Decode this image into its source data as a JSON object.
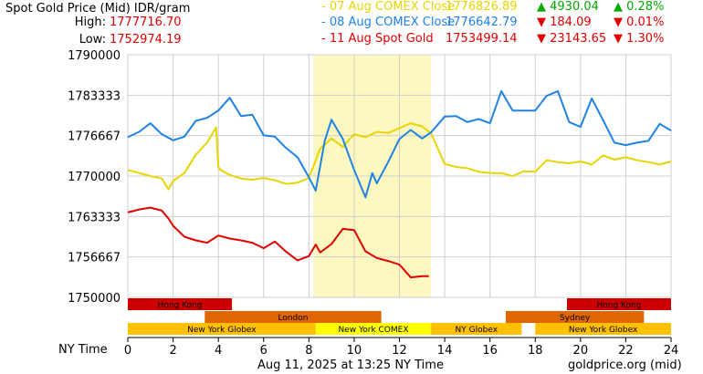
{
  "header": {
    "title": "Spot Gold Price (Mid) IDR/gram",
    "high_label": "High:",
    "high_value": "1777716.70",
    "low_label": "Low:",
    "low_value": "1752974.19"
  },
  "legend": [
    {
      "label": "- 07 Aug COMEX Close",
      "price": "1776826.89",
      "change": "▲ 4930.04",
      "pct": "▲ 0.28%",
      "color": "#e8d400",
      "change_color": "#00aa00"
    },
    {
      "label": "- 08 Aug COMEX Close",
      "price": "1776642.79",
      "change": "▼ 184.09",
      "pct": "▼ 0.01%",
      "color": "#1e82e6",
      "change_color": "#e00000"
    },
    {
      "label": "- 11 Aug Spot Gold",
      "price": "1753499.14",
      "change": "▼ 23143.65",
      "pct": "▼ 1.30%",
      "color": "#e00000",
      "change_color": "#e00000"
    }
  ],
  "footer": {
    "x_axis_name": "NY Time",
    "timestamp": "Aug 11, 2025 at 13:25 NY Time",
    "source": "goldprice.org (mid)"
  },
  "colors": {
    "highlight": "#fcf8c0",
    "grid": "#cfcfcf",
    "hongkong": "#cc0000",
    "london": "#e06600",
    "sydney": "#e06600",
    "globex": "#ffc000",
    "comex": "#ffff00"
  },
  "chart_data": {
    "type": "line",
    "xlim": [
      0,
      24
    ],
    "ylim": [
      1750000,
      1790000
    ],
    "yticks": [
      "1750000",
      "1756667",
      "1763333",
      "1770000",
      "1776667",
      "1783333",
      "1790000"
    ],
    "ytick_values": [
      1750000,
      1756667,
      1763333,
      1770000,
      1776667,
      1783333,
      1790000
    ],
    "xticks": [
      "0",
      "2",
      "4",
      "6",
      "8",
      "10",
      "12",
      "14",
      "16",
      "18",
      "20",
      "22",
      "24"
    ],
    "xtick_values": [
      0,
      2,
      4,
      6,
      8,
      10,
      12,
      14,
      16,
      18,
      20,
      22,
      24
    ],
    "comex_session_hours": [
      8.2,
      13.4
    ],
    "sessions": [
      {
        "name": "Hong Kong",
        "row": 0,
        "start": 0,
        "end": 4.6,
        "color": "hongkong"
      },
      {
        "name": "Hong Kong",
        "row": 0,
        "start": 19.4,
        "end": 24,
        "color": "hongkong"
      },
      {
        "name": "London",
        "row": 1,
        "start": 3.4,
        "end": 11.2,
        "color": "london"
      },
      {
        "name": "Sydney",
        "row": 1,
        "start": 16.7,
        "end": 22.8,
        "color": "sydney"
      },
      {
        "name": "New York Globex",
        "row": 2,
        "start": 0,
        "end": 8.3,
        "color": "globex"
      },
      {
        "name": "New York COMEX",
        "row": 2,
        "start": 8.3,
        "end": 13.4,
        "color": "comex"
      },
      {
        "name": "NY Globex",
        "row": 2,
        "start": 13.4,
        "end": 17.4,
        "color": "globex"
      },
      {
        "name": "New York Globex",
        "row": 2,
        "start": 18.0,
        "end": 24,
        "color": "globex"
      }
    ],
    "series": [
      {
        "name": "07 Aug COMEX Close",
        "color": "#e8d400",
        "x": [
          0,
          0.5,
          1,
          1.5,
          1.8,
          2.0,
          2.5,
          3.0,
          3.5,
          3.9,
          4.0,
          4.1,
          4.5,
          5.0,
          5.5,
          6.0,
          6.5,
          7.0,
          7.5,
          8.0,
          8.5,
          9.0,
          9.5,
          10.0,
          10.5,
          11.0,
          11.5,
          12.0,
          12.5,
          13.0,
          13.4,
          14.0,
          14.5,
          15.0,
          15.5,
          16.0,
          16.5,
          17.0,
          17.5,
          18.0,
          18.5,
          19.0,
          19.5,
          20.0,
          20.5,
          21.0,
          21.5,
          22.0,
          22.5,
          23.0,
          23.5,
          24.0
        ],
        "y": [
          1771000,
          1770500,
          1770000,
          1769600,
          1767800,
          1769200,
          1770500,
          1773500,
          1775500,
          1778000,
          1771500,
          1771000,
          1770200,
          1769600,
          1769400,
          1769700,
          1769300,
          1768700,
          1768900,
          1769700,
          1774500,
          1776200,
          1774800,
          1776900,
          1776400,
          1777300,
          1777100,
          1777900,
          1778700,
          1778200,
          1777000,
          1772000,
          1771500,
          1771300,
          1770700,
          1770500,
          1770500,
          1770000,
          1770800,
          1770700,
          1772600,
          1772300,
          1772100,
          1772400,
          1771900,
          1773400,
          1772700,
          1773100,
          1772600,
          1772300,
          1771900,
          1772400
        ]
      },
      {
        "name": "08 Aug COMEX Close",
        "color": "#1e82e6",
        "x": [
          0,
          0.5,
          1.0,
          1.5,
          2.0,
          2.5,
          3.0,
          3.5,
          4.0,
          4.5,
          5.0,
          5.5,
          6.0,
          6.5,
          7.0,
          7.5,
          8.0,
          8.3,
          8.7,
          9.0,
          9.5,
          10.0,
          10.5,
          10.8,
          11.0,
          11.5,
          12.0,
          12.5,
          13.0,
          13.4,
          14.0,
          14.5,
          15.0,
          15.5,
          16.0,
          16.5,
          17.0,
          17.5,
          18.0,
          18.5,
          19.0,
          19.5,
          20.0,
          20.5,
          21.0,
          21.5,
          22.0,
          22.5,
          23.0,
          23.5,
          24.0
        ],
        "y": [
          1776400,
          1777300,
          1778700,
          1776900,
          1775900,
          1776500,
          1779100,
          1779600,
          1780800,
          1782900,
          1779900,
          1780100,
          1776700,
          1776500,
          1774600,
          1773100,
          1769800,
          1767600,
          1775800,
          1779300,
          1776100,
          1771000,
          1766500,
          1770500,
          1768800,
          1772300,
          1776100,
          1777600,
          1776200,
          1777200,
          1779800,
          1779900,
          1778900,
          1779400,
          1778700,
          1784000,
          1780800,
          1780800,
          1780800,
          1783200,
          1784000,
          1778900,
          1778100,
          1782800,
          1779200,
          1775500,
          1775100,
          1775500,
          1775800,
          1778600,
          1777500
        ]
      },
      {
        "name": "11 Aug Spot Gold",
        "color": "#e00000",
        "x": [
          0,
          0.5,
          1.0,
          1.5,
          1.8,
          2.0,
          2.5,
          3.0,
          3.5,
          4.0,
          4.5,
          5.0,
          5.5,
          6.0,
          6.5,
          7.0,
          7.5,
          8.0,
          8.3,
          8.5,
          9.0,
          9.5,
          10.0,
          10.5,
          11.0,
          11.5,
          12.0,
          12.5,
          13.0,
          13.3
        ],
        "y": [
          1764000,
          1764500,
          1764800,
          1764300,
          1763000,
          1761800,
          1760000,
          1759400,
          1759000,
          1760200,
          1759700,
          1759400,
          1759000,
          1758100,
          1759200,
          1757500,
          1756100,
          1756800,
          1758700,
          1757400,
          1758800,
          1761300,
          1761100,
          1757600,
          1756500,
          1756000,
          1755400,
          1753300,
          1753500,
          1753500
        ]
      }
    ]
  }
}
